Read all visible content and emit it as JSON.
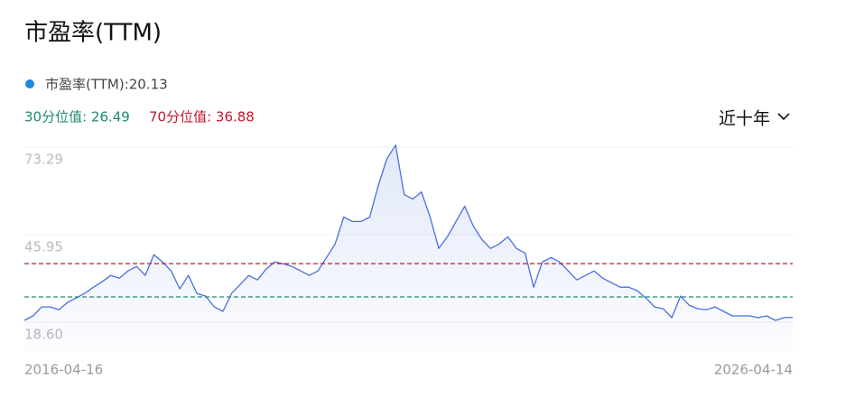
{
  "chart_data": {
    "type": "line",
    "title": "市盈率(TTM)",
    "legend": "市盈率(TTM):20.13",
    "range_selector": "近十年",
    "reference_lines": [
      {
        "label": "30分位值: 26.49",
        "value": 26.49,
        "color": "#1f8a70"
      },
      {
        "label": "70分位值: 36.88",
        "value": 36.88,
        "color": "#c0182e"
      }
    ],
    "ylim": [
      18.6,
      73.29
    ],
    "yticks": [
      {
        "value": 18.6,
        "label": "18.60"
      },
      45.95,
      73.29
    ],
    "grid": true,
    "categories": [
      "2016-04-16",
      null,
      null,
      null,
      null,
      null,
      null,
      null,
      null,
      null,
      null,
      null,
      null,
      null,
      null,
      null,
      null,
      null,
      null,
      null,
      null,
      null,
      null,
      null,
      null,
      null,
      null,
      null,
      null,
      null,
      null,
      null,
      null,
      null,
      null,
      null,
      null,
      null,
      null,
      null,
      null,
      null,
      null,
      null,
      null,
      null,
      null,
      null,
      null,
      null,
      null,
      null,
      null,
      null,
      null,
      null,
      null,
      null,
      null,
      null,
      null,
      null,
      null,
      null,
      null,
      null,
      null,
      null,
      null,
      null,
      null,
      null,
      null,
      null,
      null,
      null,
      null,
      null,
      null,
      null,
      null,
      null,
      null,
      null,
      null,
      null,
      null,
      null,
      null,
      "2026-04-14"
    ],
    "series": [
      {
        "name": "市盈率(TTM)",
        "color": "#4a6fdc",
        "values": [
          19.16,
          20.57,
          23.37,
          23.37,
          22.53,
          24.78,
          26.18,
          27.59,
          29.55,
          31.24,
          33.2,
          32.36,
          34.61,
          36.01,
          33.2,
          39.66,
          37.41,
          34.61,
          28.99,
          33.2,
          27.59,
          26.74,
          23.37,
          21.97,
          27.59,
          30.39,
          33.2,
          31.8,
          35.17,
          37.41,
          36.85,
          36.01,
          34.61,
          33.2,
          34.61,
          38.82,
          43.03,
          51.45,
          50.05,
          50.05,
          51.45,
          61.28,
          69.71,
          73.92,
          58.47,
          57.07,
          59.32,
          51.45,
          41.63,
          45.28,
          50.05,
          54.82,
          48.65,
          44.43,
          41.63,
          43.03,
          45.28,
          41.63,
          40.22,
          29.55,
          37.41,
          38.82,
          37.41,
          34.61,
          31.8,
          33.2,
          34.61,
          32.36,
          30.96,
          29.55,
          29.55,
          28.43,
          26.18,
          23.37,
          22.81,
          20.0,
          26.74,
          23.94,
          22.81,
          22.53,
          23.37,
          21.97,
          20.57,
          20.57,
          20.57,
          20.0,
          20.57,
          19.16,
          20.0,
          20.13
        ]
      }
    ]
  }
}
